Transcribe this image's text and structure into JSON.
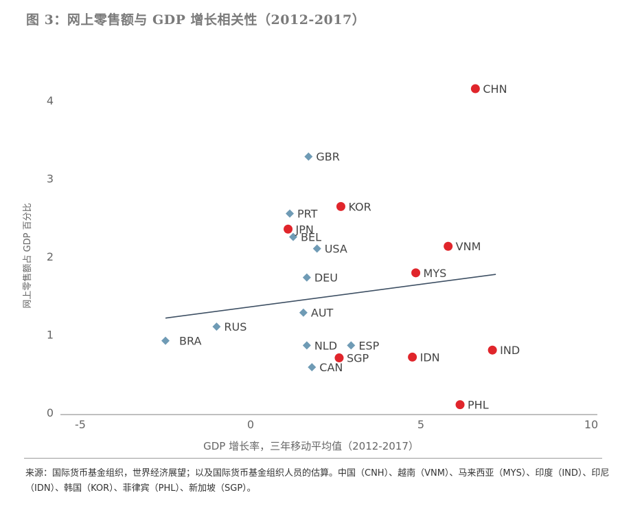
{
  "title": "图 3：网上零售额与 GDP 增长相关性（2012-2017）",
  "source_note": "来源：国际货币基金组织，世界经济展望；以及国际货币基金组织人员的估算。中国（CNH）、越南（VNM）、马来西亚（MYS）、印度（IND）、印尼（IDN）、韩国（KOR）、菲律宾（PHL）、新加坡（SGP）。",
  "colors": {
    "diamond": "#6f9bb5",
    "circle": "#e0252b",
    "trend": "#3d4f63",
    "axis": "#999999",
    "tick_text": "#666666",
    "label_text": "#444444"
  },
  "chart_data": {
    "type": "scatter",
    "title": "图 3：网上零售额与 GDP 增长相关性（2012-2017）",
    "xlabel": "GDP 增长率，三年移动平均值（2012-2017）",
    "ylabel": "网上零售额占 GDP 百分比",
    "xlim": [
      -5,
      10
    ],
    "ylim": [
      0,
      4.5
    ],
    "xticks": [
      -5,
      0,
      5,
      10
    ],
    "yticks": [
      0,
      1,
      2,
      3,
      4
    ],
    "grid": false,
    "legend": "none",
    "series": [
      {
        "marker": "diamond",
        "points": [
          {
            "label": "GBR",
            "x": 1.7,
            "y": 3.28
          },
          {
            "label": "PRT",
            "x": 1.15,
            "y": 2.55
          },
          {
            "label": "BEL",
            "x": 1.25,
            "y": 2.25
          },
          {
            "label": "USA",
            "x": 1.95,
            "y": 2.1
          },
          {
            "label": "DEU",
            "x": 1.65,
            "y": 1.73
          },
          {
            "label": "AUT",
            "x": 1.55,
            "y": 1.28
          },
          {
            "label": "RUS",
            "x": -1.0,
            "y": 1.1
          },
          {
            "label": "BRA",
            "x": -2.5,
            "y": 0.92
          },
          {
            "label": "NLD",
            "x": 1.65,
            "y": 0.86
          },
          {
            "label": "ESP",
            "x": 2.95,
            "y": 0.86
          },
          {
            "label": "CAN",
            "x": 1.8,
            "y": 0.58
          }
        ]
      },
      {
        "marker": "circle",
        "points": [
          {
            "label": "CHN",
            "x": 6.6,
            "y": 4.15
          },
          {
            "label": "KOR",
            "x": 2.65,
            "y": 2.64
          },
          {
            "label": "JPN",
            "x": 1.1,
            "y": 2.35
          },
          {
            "label": "VNM",
            "x": 5.8,
            "y": 2.13
          },
          {
            "label": "MYS",
            "x": 4.85,
            "y": 1.79
          },
          {
            "label": "IND",
            "x": 7.1,
            "y": 0.8
          },
          {
            "label": "IDN",
            "x": 4.75,
            "y": 0.71
          },
          {
            "label": "SGP",
            "x": 2.6,
            "y": 0.7
          },
          {
            "label": "PHL",
            "x": 6.15,
            "y": 0.1
          }
        ]
      }
    ],
    "trendline": {
      "x": [
        -2.5,
        7.2
      ],
      "y": [
        1.21,
        1.77
      ]
    }
  }
}
